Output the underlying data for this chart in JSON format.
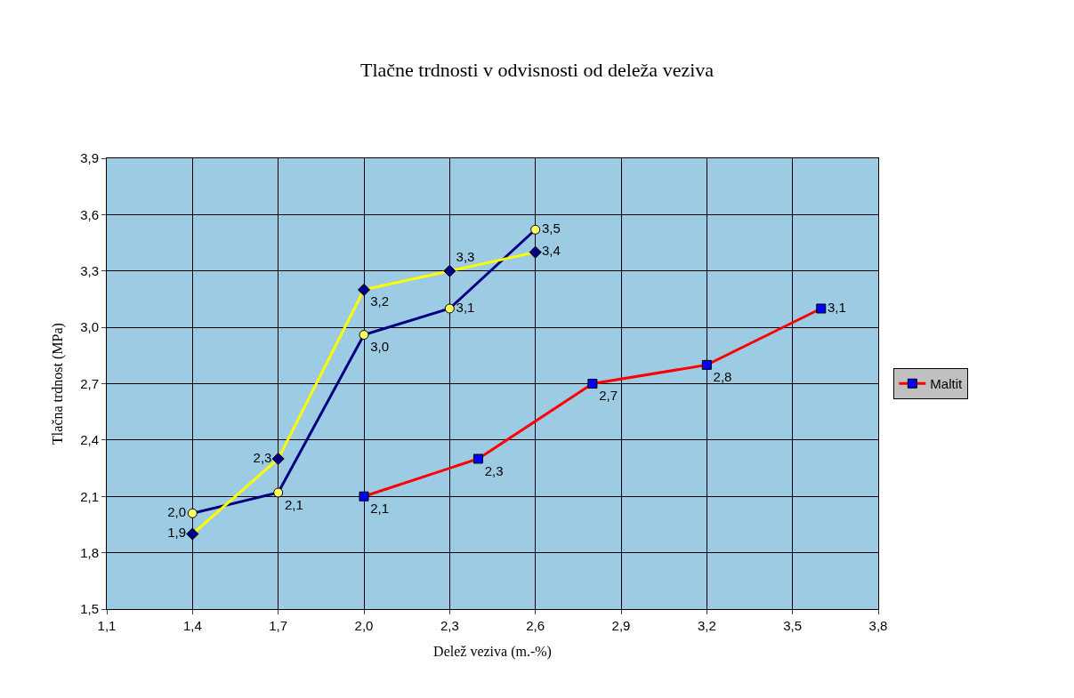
{
  "chart_data": {
    "type": "line",
    "title": "Tlačne trdnosti v odvisnosti od deleža veziva",
    "xlabel": "Delež veziva (m.-%)",
    "ylabel": "Tlačna trdnost (MPa)",
    "xlim": [
      1.1,
      3.8
    ],
    "xticks": [
      {
        "value": 1.1,
        "label": "1,1"
      },
      {
        "value": 1.4,
        "label": "1,4"
      },
      {
        "value": 1.7,
        "label": "1,7"
      },
      {
        "value": 2.0,
        "label": "2,0"
      },
      {
        "value": 2.3,
        "label": "2,3"
      },
      {
        "value": 2.6,
        "label": "2,6"
      },
      {
        "value": 2.9,
        "label": "2,9"
      },
      {
        "value": 3.2,
        "label": "3,2"
      },
      {
        "value": 3.5,
        "label": "3,5"
      },
      {
        "value": 3.8,
        "label": "3,8"
      }
    ],
    "ylim": [
      1.5,
      3.9
    ],
    "yticks": [
      {
        "value": 1.5,
        "label": "1,5"
      },
      {
        "value": 1.8,
        "label": "1,8"
      },
      {
        "value": 2.1,
        "label": "2,1"
      },
      {
        "value": 2.4,
        "label": "2,4"
      },
      {
        "value": 2.7,
        "label": "2,7"
      },
      {
        "value": 3.0,
        "label": "3,0"
      },
      {
        "value": 3.3,
        "label": "3,3"
      },
      {
        "value": 3.6,
        "label": "3,6"
      },
      {
        "value": 3.9,
        "label": "3,9"
      }
    ],
    "grid": true,
    "legend": "right",
    "series": [
      {
        "color": "#000080",
        "marker": "circle",
        "colors": [
          "#ffff66",
          "#ffff66",
          "#ffff66",
          "#ffff66",
          "#ffff66"
        ],
        "x": [
          1.4,
          1.7,
          2.0,
          2.3,
          2.6
        ],
        "values": [
          2.01,
          2.12,
          2.96,
          3.1,
          3.52
        ],
        "value_labels": [
          "2,0",
          "2,1",
          "3,0",
          "3,1",
          "3,5"
        ]
      },
      {
        "color": "#ffff00",
        "marker": "diamond",
        "colors": [
          "#000080",
          "#000080",
          "#000080",
          "#000080",
          "#000080"
        ],
        "x": [
          1.4,
          1.7,
          2.0,
          2.3,
          2.6
        ],
        "values": [
          1.9,
          2.3,
          3.2,
          3.3,
          3.4
        ],
        "value_labels": [
          "1,9",
          "2,3",
          "3,2",
          "3,3",
          "3,4"
        ]
      },
      {
        "name": "Maltit",
        "color": "#ff0000",
        "marker": "square",
        "colors": [
          "#0000ff",
          "#0000ff",
          "#0000ff",
          "#0000ff",
          "#0000ff"
        ],
        "x": [
          2.0,
          2.4,
          2.8,
          3.2,
          3.6
        ],
        "values": [
          2.1,
          2.3,
          2.7,
          2.8,
          3.1
        ],
        "value_labels": [
          "2,1",
          "2,3",
          "2,7",
          "2,8",
          "3,1"
        ]
      }
    ]
  }
}
